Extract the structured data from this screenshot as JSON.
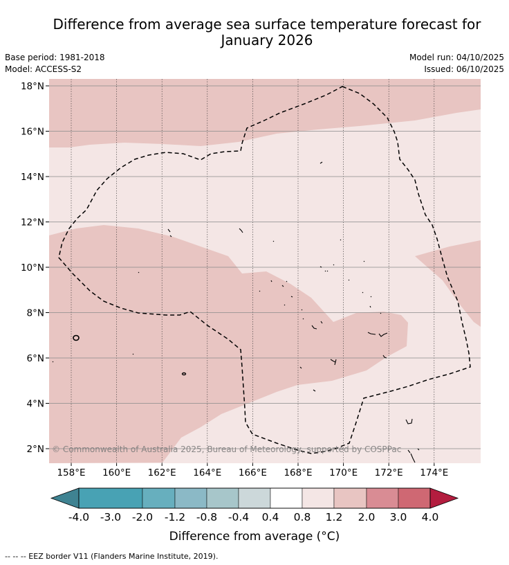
{
  "title": {
    "line1": "Difference from average sea surface temperature forecast for",
    "line2": "January 2026"
  },
  "meta": {
    "base_period": "Base period: 1981-2018",
    "model": "Model: ACCESS-S2",
    "model_run": "Model run: 04/10/2025",
    "issued": "Issued: 06/10/2025"
  },
  "map": {
    "lat_labels": [
      "18°N",
      "16°N",
      "14°N",
      "12°N",
      "10°N",
      "8°N",
      "6°N",
      "4°N",
      "2°N"
    ],
    "lon_labels": [
      "158°E",
      "160°E",
      "162°E",
      "164°E",
      "166°E",
      "168°E",
      "170°E",
      "172°E",
      "174°E"
    ],
    "copyright": "© Commonwealth of Australia 2025, Bureau of Meteorology, supported by COSPPac",
    "colors": {
      "band_0_4_to_0_8": "#f4e6e5",
      "band_0_8_to_1_2": "#e8c5c2",
      "coast": "#000000",
      "eez": "#000000"
    }
  },
  "colorbar": {
    "labels": [
      "-4.0",
      "-3.0",
      "-2.0",
      "-1.2",
      "-0.8",
      "-0.4",
      "0.4",
      "0.8",
      "1.2",
      "2.0",
      "3.0",
      "4.0"
    ],
    "colors": [
      "#3f8392",
      "#48a2b4",
      "#67afbe",
      "#8bb9c6",
      "#a7c6ca",
      "#ccd8da",
      "#ffffff",
      "#f4e6e5",
      "#e8c5c2",
      "#d98c94",
      "#cf6873",
      "#c04555",
      "#b31d3f"
    ],
    "label": "Difference from average (°C)"
  },
  "footnote": "--  --  -- EEZ border V11 (Flanders Marine Institute, 2019)."
}
